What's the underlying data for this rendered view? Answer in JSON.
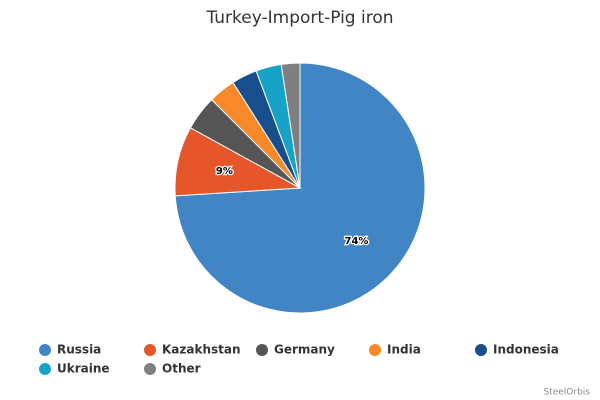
{
  "chart_data": {
    "type": "pie",
    "title": "Turkey-Import-Pig iron",
    "categories": [
      "Russia",
      "Kazakhstan",
      "Germany",
      "India",
      "Indonesia",
      "Ukraine",
      "Other"
    ],
    "values": [
      74,
      9,
      4.5,
      3.5,
      3.3,
      3.3,
      2.4
    ],
    "value_labels": [
      "74%",
      "9%",
      null,
      null,
      null,
      null,
      null
    ],
    "colors": [
      "#4285c5",
      "#e5572a",
      "#555555",
      "#f7892a",
      "#164f8c",
      "#17a2c7",
      "#7f7f7f"
    ],
    "credit": "SteelOrbis"
  }
}
